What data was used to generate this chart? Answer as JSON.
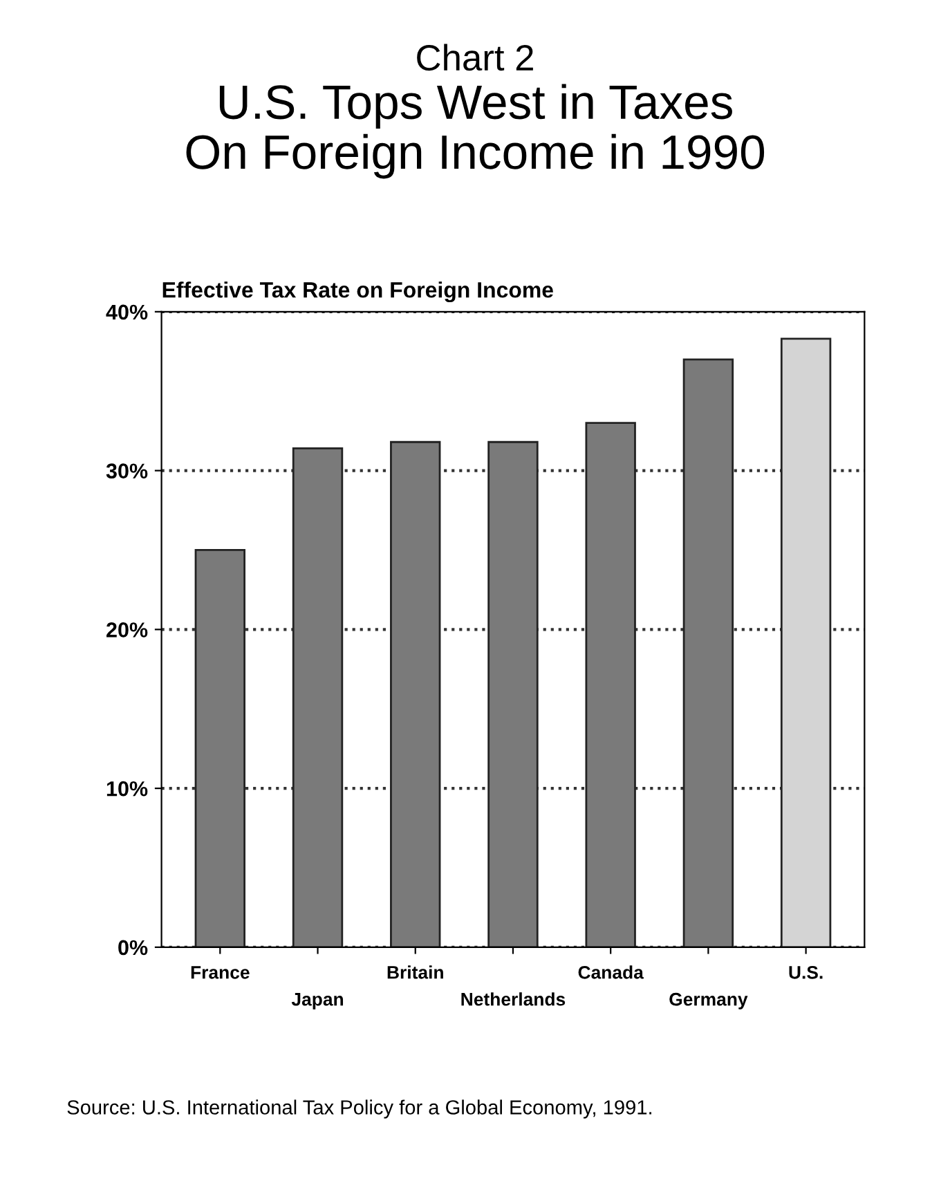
{
  "chart_data": {
    "type": "bar",
    "subtitle": "Chart 2",
    "title": "U.S. Tops West in Taxes\nOn Foreign Income in 1990",
    "ylabel": "Effective Tax Rate on Foreign Income",
    "categories": [
      "France",
      "Japan",
      "Britain",
      "Netherlands",
      "Canada",
      "Germany",
      "U.S."
    ],
    "values": [
      25,
      31.4,
      31.8,
      31.8,
      33,
      37,
      38.3
    ],
    "colors": [
      "#7a7a7a",
      "#7a7a7a",
      "#7a7a7a",
      "#7a7a7a",
      "#7a7a7a",
      "#7a7a7a",
      "#d4d4d4"
    ],
    "ylim": [
      0,
      40
    ],
    "yticks": [
      {
        "value": 0,
        "label": "0%"
      },
      {
        "value": 10,
        "label": "10%"
      },
      {
        "value": 20,
        "label": "20%"
      },
      {
        "value": 30,
        "label": "30%"
      },
      {
        "value": 40,
        "label": "40%"
      }
    ],
    "grid": "y",
    "line_style": "dotted",
    "annotations": [
      "Source: U.S. International Tax Policy for a Global Economy, 1991."
    ]
  }
}
